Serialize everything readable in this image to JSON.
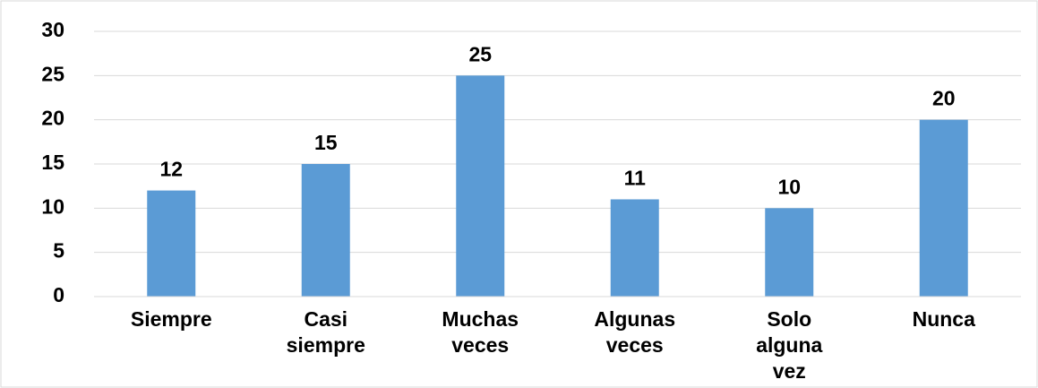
{
  "chart_data": {
    "type": "bar",
    "categories": [
      "Siempre",
      "Casi siempre",
      "Muchas veces",
      "Algunas veces",
      "Solo alguna vez",
      "Nunca"
    ],
    "values": [
      12,
      15,
      25,
      11,
      10,
      20
    ],
    "color": "#5b9bd5",
    "ylim": [
      0,
      30
    ],
    "yticks": [
      0,
      5,
      10,
      15,
      20,
      25,
      30
    ],
    "grid": true
  }
}
